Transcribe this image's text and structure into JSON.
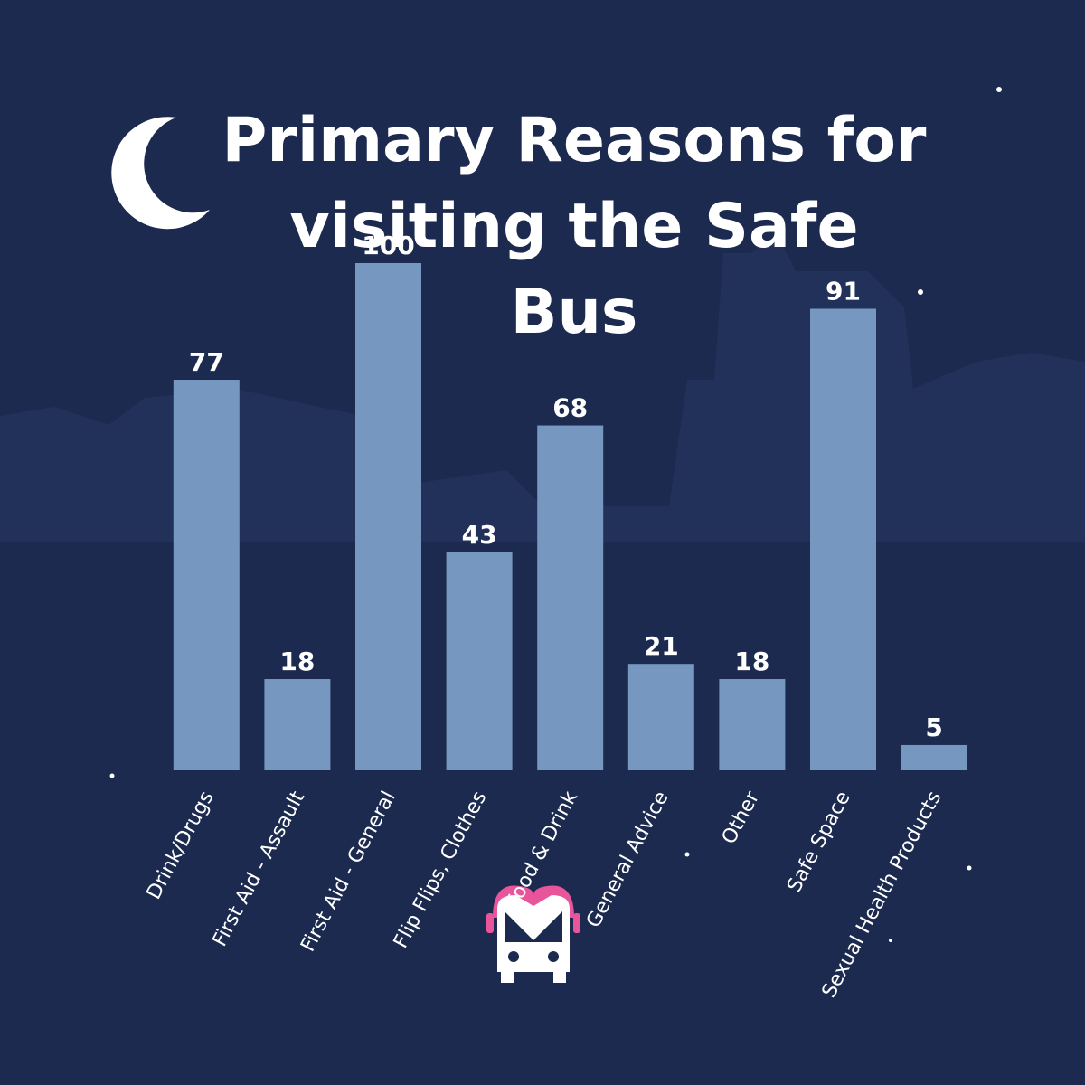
{
  "chart_data": {
    "type": "bar",
    "title": "Primary Reasons for visiting the Safe Bus",
    "categories": [
      "Drink/Drugs",
      "First Aid - Assault",
      "First Aid - General",
      "Flip Flips, Clothes",
      "Food & Drink",
      "General Advice",
      "Other",
      "Safe Space",
      "Sexual Health Products"
    ],
    "values": [
      77,
      18,
      100,
      43,
      68,
      21,
      18,
      91,
      5
    ],
    "color": "#7697bf"
  }
}
